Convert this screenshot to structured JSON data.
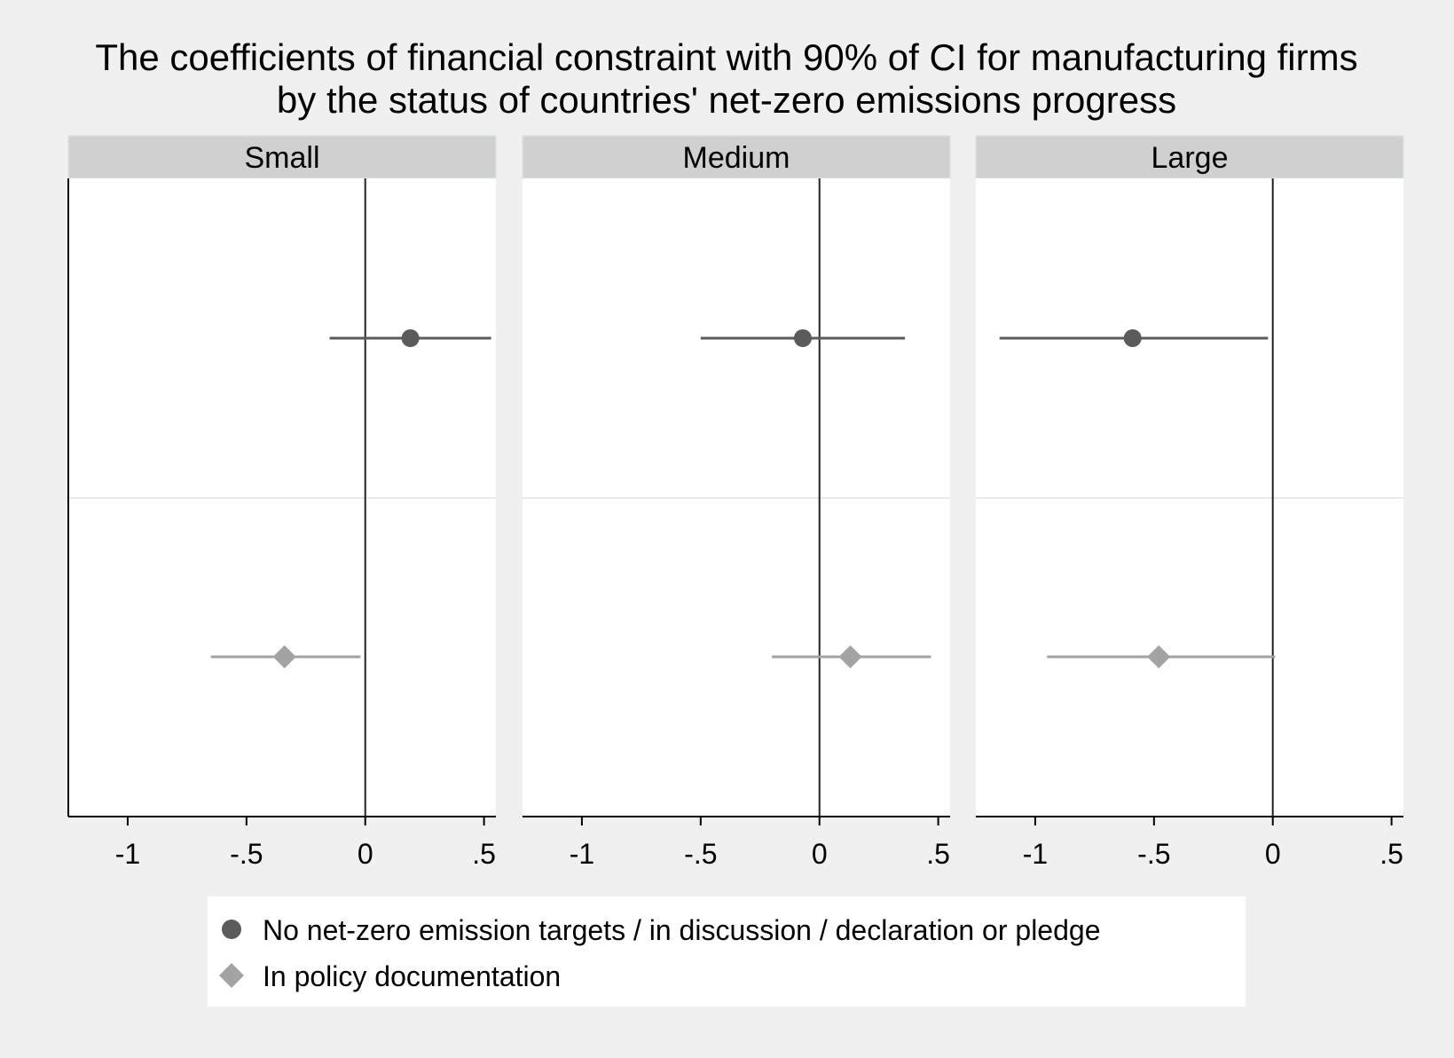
{
  "chart_data": {
    "type": "scatter",
    "title": [
      "The coefficients of financial constraint with 90% of CI for manufacturing firms",
      "by the status of countries' net-zero emissions progress"
    ],
    "xlabel": "",
    "ylabel": "",
    "xlim": [
      -1.25,
      0.55
    ],
    "x_ticks": [
      -1,
      -0.5,
      0,
      0.5
    ],
    "x_tick_labels": [
      "-1",
      "-.5",
      "0",
      ".5"
    ],
    "reference_line_x": 0,
    "grid": false,
    "legend_position": "bottom",
    "colors": {
      "series1": "#5b5b5b",
      "series2": "#a3a3a3",
      "strip": "#d0d0d0"
    },
    "panels": [
      {
        "label": "Small",
        "points": [
          {
            "series": 0,
            "estimate": 0.19,
            "ci": [
              -0.15,
              0.53
            ]
          },
          {
            "series": 1,
            "estimate": -0.34,
            "ci": [
              -0.65,
              -0.02
            ]
          }
        ]
      },
      {
        "label": "Medium",
        "points": [
          {
            "series": 0,
            "estimate": -0.07,
            "ci": [
              -0.5,
              0.36
            ]
          },
          {
            "series": 1,
            "estimate": 0.13,
            "ci": [
              -0.2,
              0.47
            ]
          }
        ]
      },
      {
        "label": "Large",
        "points": [
          {
            "series": 0,
            "estimate": -0.59,
            "ci": [
              -1.15,
              -0.02
            ]
          },
          {
            "series": 1,
            "estimate": -0.48,
            "ci": [
              -0.95,
              0.01
            ]
          }
        ]
      }
    ],
    "series": [
      {
        "name": "No net-zero emission targets / in discussion / declaration or pledge",
        "marker": "circle"
      },
      {
        "name": "In policy documentation",
        "marker": "diamond"
      }
    ]
  }
}
